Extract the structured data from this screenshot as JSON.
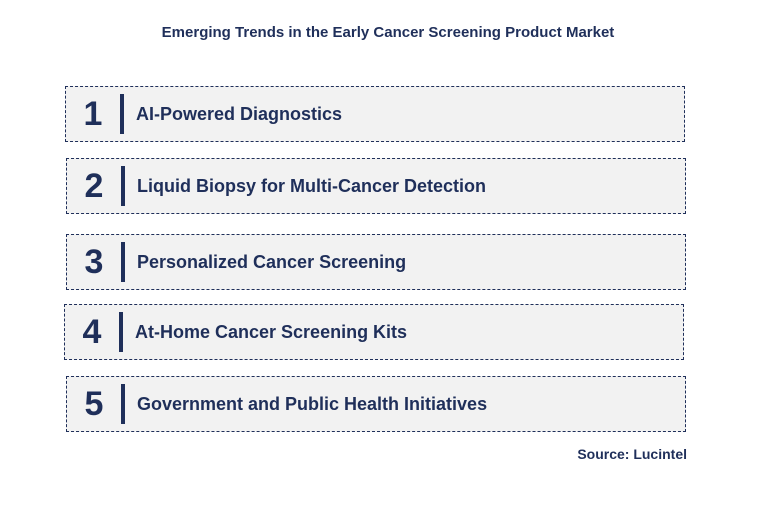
{
  "title": "Emerging Trends in the Early Cancer Screening Product Market",
  "trends": [
    {
      "number": "1",
      "label": "AI-Powered Diagnostics"
    },
    {
      "number": "2",
      "label": "Liquid Biopsy for Multi-Cancer Detection"
    },
    {
      "number": "3",
      "label": "Personalized Cancer Screening"
    },
    {
      "number": "4",
      "label": "At-Home Cancer Screening Kits"
    },
    {
      "number": "5",
      "label": "Government and Public Health Initiatives"
    }
  ],
  "source": "Source: Lucintel",
  "colors": {
    "text": "#1f2f5a",
    "box_fill": "#f2f2f2"
  }
}
